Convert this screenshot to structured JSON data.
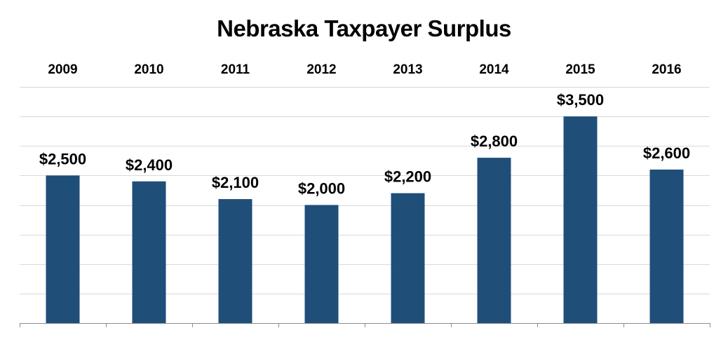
{
  "chart_data": {
    "type": "bar",
    "title": "Nebraska Taxpayer Surplus",
    "categories": [
      "2009",
      "2010",
      "2011",
      "2012",
      "2013",
      "2014",
      "2015",
      "2016"
    ],
    "values": [
      2500,
      2400,
      2100,
      2000,
      2200,
      2800,
      3500,
      2600
    ],
    "value_labels": [
      "$2,500",
      "$2,400",
      "$2,100",
      "$2,000",
      "$2,200",
      "$2,800",
      "$3,500",
      "$2,600"
    ],
    "xlabel": "",
    "ylabel": "",
    "ylim": [
      0,
      4000
    ],
    "grid": true,
    "category_label_position": "top",
    "bar_color": "#1f4e79"
  }
}
